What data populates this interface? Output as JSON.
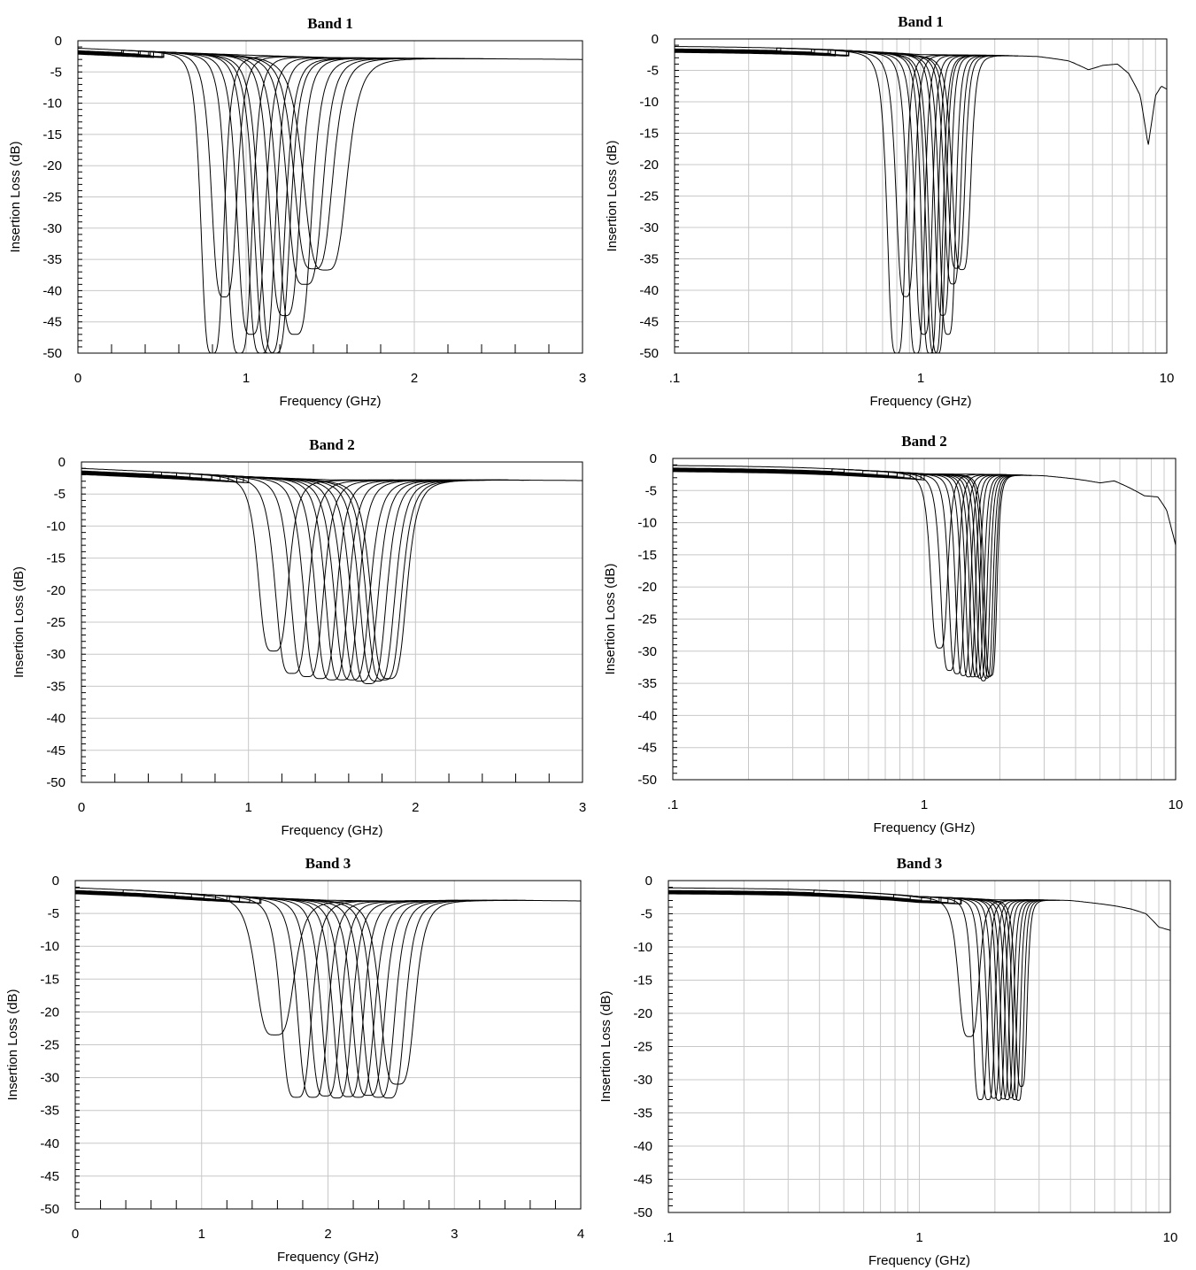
{
  "chart_data": [
    {
      "type": "line",
      "title": "Band 1",
      "xlabel": "Frequency (GHz)",
      "ylabel": "Insertion Loss (dB)",
      "xscale": "linear",
      "xlim": [
        0,
        3
      ],
      "ylim": [
        -50,
        0
      ],
      "xticks": [
        {
          "v": 0,
          "label": "0"
        },
        {
          "v": 1,
          "label": "1"
        },
        {
          "v": 2,
          "label": "2"
        },
        {
          "v": 3,
          "label": "3"
        }
      ],
      "yticks": [
        "0",
        "-5",
        "-10",
        "-15",
        "-20",
        "-25",
        "-30",
        "-35",
        "-40",
        "-45",
        "-50"
      ],
      "grid": true,
      "legend": "none",
      "series": [
        {
          "center": 0.8,
          "depth": -50,
          "width": 0.09,
          "shoulder": -3.0
        },
        {
          "center": 0.87,
          "depth": -41,
          "width": 0.1,
          "shoulder": -3.0
        },
        {
          "center": 0.96,
          "depth": -50,
          "width": 0.1,
          "shoulder": -3.0
        },
        {
          "center": 1.03,
          "depth": -47,
          "width": 0.11,
          "shoulder": -3.0
        },
        {
          "center": 1.09,
          "depth": -50,
          "width": 0.11,
          "shoulder": -3.0
        },
        {
          "center": 1.14,
          "depth": -50,
          "width": 0.12,
          "shoulder": -3.0
        },
        {
          "center": 1.17,
          "depth": -50,
          "width": 0.12,
          "shoulder": -3.0
        },
        {
          "center": 1.23,
          "depth": -44,
          "width": 0.12,
          "shoulder": -3.0
        },
        {
          "center": 1.29,
          "depth": -47,
          "width": 0.13,
          "shoulder": -3.0
        },
        {
          "center": 1.35,
          "depth": -39,
          "width": 0.14,
          "shoulder": -3.0
        },
        {
          "center": 1.4,
          "depth": -36.5,
          "width": 0.15,
          "shoulder": -3.0
        },
        {
          "center": 1.47,
          "depth": -36.7,
          "width": 0.17,
          "shoulder": -3.0
        }
      ],
      "baseline": {
        "x": [
          0,
          0.5,
          1.0,
          1.5,
          2.0,
          2.5,
          3.0
        ],
        "y": [
          -1.2,
          -1.8,
          -2.3,
          -2.7,
          -2.8,
          -2.9,
          -3.0
        ]
      }
    },
    {
      "type": "line",
      "title": "Band 1",
      "xlabel": "Frequency (GHz)",
      "ylabel": "Insertion Loss (dB)",
      "xscale": "log",
      "xlim": [
        0.1,
        10
      ],
      "ylim": [
        -50,
        0
      ],
      "xticks": [
        {
          "v": 0.1,
          "label": ".1"
        },
        {
          "v": 1,
          "label": "1"
        },
        {
          "v": 10,
          "label": "10"
        }
      ],
      "yticks": [
        "0",
        "-5",
        "-10",
        "-15",
        "-20",
        "-25",
        "-30",
        "-35",
        "-40",
        "-45",
        "-50"
      ],
      "grid": true,
      "legend": "none",
      "series": [
        {
          "center": 0.8,
          "depth": -50,
          "width": 0.09,
          "shoulder": -3.0
        },
        {
          "center": 0.87,
          "depth": -41,
          "width": 0.1,
          "shoulder": -3.0
        },
        {
          "center": 0.96,
          "depth": -50,
          "width": 0.1,
          "shoulder": -3.0
        },
        {
          "center": 1.03,
          "depth": -47,
          "width": 0.11,
          "shoulder": -3.0
        },
        {
          "center": 1.09,
          "depth": -50,
          "width": 0.11,
          "shoulder": -3.0
        },
        {
          "center": 1.14,
          "depth": -50,
          "width": 0.12,
          "shoulder": -3.0
        },
        {
          "center": 1.17,
          "depth": -50,
          "width": 0.12,
          "shoulder": -3.0
        },
        {
          "center": 1.23,
          "depth": -44,
          "width": 0.12,
          "shoulder": -3.0
        },
        {
          "center": 1.29,
          "depth": -47,
          "width": 0.13,
          "shoulder": -3.0
        },
        {
          "center": 1.35,
          "depth": -39,
          "width": 0.14,
          "shoulder": -3.0
        },
        {
          "center": 1.4,
          "depth": -36.5,
          "width": 0.15,
          "shoulder": -3.0
        },
        {
          "center": 1.47,
          "depth": -36.7,
          "width": 0.17,
          "shoulder": -3.0
        }
      ],
      "baseline": {
        "x": [
          0.1,
          0.3,
          0.6,
          1.0,
          2.0,
          3.0,
          4.0,
          4.8,
          5.5,
          6.3,
          7.0,
          7.8,
          8.4,
          9.0,
          9.5,
          10.0
        ],
        "y": [
          -1.2,
          -1.5,
          -2.0,
          -2.5,
          -2.6,
          -2.8,
          -3.5,
          -4.9,
          -4.2,
          -4.0,
          -5.5,
          -9.0,
          -17.0,
          -9.0,
          -7.5,
          -8.0
        ]
      }
    },
    {
      "type": "line",
      "title": "Band 2",
      "xlabel": "Frequency (GHz)",
      "ylabel": "Insertion Loss (dB)",
      "xscale": "linear",
      "xlim": [
        0,
        3
      ],
      "ylim": [
        -50,
        0
      ],
      "xticks": [
        {
          "v": 0,
          "label": "0"
        },
        {
          "v": 1,
          "label": "1"
        },
        {
          "v": 2,
          "label": "2"
        },
        {
          "v": 3,
          "label": "3"
        }
      ],
      "yticks": [
        "0",
        "-5",
        "-10",
        "-15",
        "-20",
        "-25",
        "-30",
        "-35",
        "-40",
        "-45",
        "-50"
      ],
      "grid": true,
      "legend": "none",
      "series": [
        {
          "center": 1.15,
          "depth": -29.5,
          "width": 0.12,
          "shoulder": -3.0
        },
        {
          "center": 1.26,
          "depth": -33.0,
          "width": 0.13,
          "shoulder": -3.0
        },
        {
          "center": 1.35,
          "depth": -33.5,
          "width": 0.13,
          "shoulder": -3.0
        },
        {
          "center": 1.43,
          "depth": -33.8,
          "width": 0.13,
          "shoulder": -3.0
        },
        {
          "center": 1.5,
          "depth": -34.0,
          "width": 0.13,
          "shoulder": -3.0
        },
        {
          "center": 1.56,
          "depth": -34.0,
          "width": 0.13,
          "shoulder": -3.0
        },
        {
          "center": 1.62,
          "depth": -34.0,
          "width": 0.14,
          "shoulder": -3.0
        },
        {
          "center": 1.67,
          "depth": -34.2,
          "width": 0.14,
          "shoulder": -3.0
        },
        {
          "center": 1.72,
          "depth": -34.6,
          "width": 0.14,
          "shoulder": -3.0
        },
        {
          "center": 1.77,
          "depth": -34.2,
          "width": 0.14,
          "shoulder": -3.0
        },
        {
          "center": 1.81,
          "depth": -34.0,
          "width": 0.14,
          "shoulder": -3.0
        },
        {
          "center": 1.84,
          "depth": -33.8,
          "width": 0.14,
          "shoulder": -3.0
        }
      ],
      "baseline": {
        "x": [
          0,
          0.5,
          1.0,
          1.5,
          2.0,
          2.5,
          3.0
        ],
        "y": [
          -1.0,
          -1.6,
          -2.3,
          -2.8,
          -2.8,
          -2.8,
          -2.9
        ]
      }
    },
    {
      "type": "line",
      "title": "Band 2",
      "xlabel": "Frequency (GHz)",
      "ylabel": "Insertion Loss (dB)",
      "xscale": "log",
      "xlim": [
        0.1,
        10
      ],
      "ylim": [
        -50,
        0
      ],
      "xticks": [
        {
          "v": 0.1,
          "label": ".1"
        },
        {
          "v": 1,
          "label": "1"
        },
        {
          "v": 10,
          "label": "10"
        }
      ],
      "yticks": [
        "0",
        "-5",
        "-10",
        "-15",
        "-20",
        "-25",
        "-30",
        "-35",
        "-40",
        "-45",
        "-50"
      ],
      "grid": true,
      "legend": "none",
      "series": [
        {
          "center": 1.15,
          "depth": -29.5,
          "width": 0.12,
          "shoulder": -3.0
        },
        {
          "center": 1.26,
          "depth": -33.0,
          "width": 0.13,
          "shoulder": -3.0
        },
        {
          "center": 1.35,
          "depth": -33.5,
          "width": 0.13,
          "shoulder": -3.0
        },
        {
          "center": 1.43,
          "depth": -33.8,
          "width": 0.13,
          "shoulder": -3.0
        },
        {
          "center": 1.5,
          "depth": -34.0,
          "width": 0.13,
          "shoulder": -3.0
        },
        {
          "center": 1.56,
          "depth": -34.0,
          "width": 0.13,
          "shoulder": -3.0
        },
        {
          "center": 1.62,
          "depth": -34.0,
          "width": 0.14,
          "shoulder": -3.0
        },
        {
          "center": 1.67,
          "depth": -34.2,
          "width": 0.14,
          "shoulder": -3.0
        },
        {
          "center": 1.72,
          "depth": -34.6,
          "width": 0.14,
          "shoulder": -3.0
        },
        {
          "center": 1.77,
          "depth": -34.2,
          "width": 0.14,
          "shoulder": -3.0
        },
        {
          "center": 1.81,
          "depth": -34.0,
          "width": 0.14,
          "shoulder": -3.0
        },
        {
          "center": 1.84,
          "depth": -33.8,
          "width": 0.14,
          "shoulder": -3.0
        }
      ],
      "baseline": {
        "x": [
          0.1,
          0.3,
          0.6,
          1.0,
          2.0,
          3.0,
          4.0,
          5.0,
          5.7,
          6.5,
          7.5,
          8.5,
          9.2,
          10.0
        ],
        "y": [
          -1.1,
          -1.4,
          -1.9,
          -2.4,
          -2.5,
          -2.7,
          -3.2,
          -3.8,
          -3.5,
          -4.5,
          -5.8,
          -6.0,
          -8.0,
          -13.5
        ]
      }
    },
    {
      "type": "line",
      "title": "Band 3",
      "xlabel": "Frequency (GHz)",
      "ylabel": "Insertion Loss (dB)",
      "xscale": "linear",
      "xlim": [
        0,
        4
      ],
      "ylim": [
        -50,
        0
      ],
      "xticks": [
        {
          "v": 0,
          "label": "0"
        },
        {
          "v": 1,
          "label": "1"
        },
        {
          "v": 2,
          "label": "2"
        },
        {
          "v": 3,
          "label": "3"
        },
        {
          "v": 4,
          "label": "4"
        }
      ],
      "yticks": [
        "0",
        "-5",
        "-10",
        "-15",
        "-20",
        "-25",
        "-30",
        "-35",
        "-40",
        "-45",
        "-50"
      ],
      "grid": true,
      "legend": "none",
      "series": [
        {
          "center": 1.58,
          "depth": -23.5,
          "width": 0.2,
          "shoulder": -3.0
        },
        {
          "center": 1.75,
          "depth": -33.0,
          "width": 0.16,
          "shoulder": -3.0
        },
        {
          "center": 1.88,
          "depth": -33.0,
          "width": 0.16,
          "shoulder": -3.0
        },
        {
          "center": 1.98,
          "depth": -32.8,
          "width": 0.16,
          "shoulder": -3.0
        },
        {
          "center": 2.07,
          "depth": -33.1,
          "width": 0.16,
          "shoulder": -3.0
        },
        {
          "center": 2.16,
          "depth": -32.9,
          "width": 0.16,
          "shoulder": -3.0
        },
        {
          "center": 2.24,
          "depth": -33.0,
          "width": 0.17,
          "shoulder": -3.0
        },
        {
          "center": 2.32,
          "depth": -32.7,
          "width": 0.17,
          "shoulder": -3.0
        },
        {
          "center": 2.4,
          "depth": -33.0,
          "width": 0.17,
          "shoulder": -3.0
        },
        {
          "center": 2.48,
          "depth": -33.1,
          "width": 0.17,
          "shoulder": -3.0
        },
        {
          "center": 2.55,
          "depth": -31.0,
          "width": 0.18,
          "shoulder": -3.0
        }
      ],
      "baseline": {
        "x": [
          0,
          0.5,
          1.0,
          1.5,
          2.0,
          2.5,
          3.0,
          3.5,
          4.0
        ],
        "y": [
          -1.1,
          -1.5,
          -2.1,
          -2.6,
          -3.0,
          -3.1,
          -3.0,
          -3.0,
          -3.1
        ]
      }
    },
    {
      "type": "line",
      "title": "Band 3",
      "xlabel": "Frequency (GHz)",
      "ylabel": "Insertion Loss (dB)",
      "xscale": "log",
      "xlim": [
        0.1,
        10
      ],
      "ylim": [
        -50,
        0
      ],
      "xticks": [
        {
          "v": 0.1,
          "label": ".1"
        },
        {
          "v": 1,
          "label": "1"
        },
        {
          "v": 10,
          "label": "10"
        }
      ],
      "yticks": [
        "0",
        "-5",
        "-10",
        "-15",
        "-20",
        "-25",
        "-30",
        "-35",
        "-40",
        "-45",
        "-50"
      ],
      "grid": true,
      "legend": "none",
      "series": [
        {
          "center": 1.58,
          "depth": -23.5,
          "width": 0.2,
          "shoulder": -3.0
        },
        {
          "center": 1.75,
          "depth": -33.0,
          "width": 0.16,
          "shoulder": -3.0
        },
        {
          "center": 1.88,
          "depth": -33.0,
          "width": 0.16,
          "shoulder": -3.0
        },
        {
          "center": 1.98,
          "depth": -32.8,
          "width": 0.16,
          "shoulder": -3.0
        },
        {
          "center": 2.07,
          "depth": -33.1,
          "width": 0.16,
          "shoulder": -3.0
        },
        {
          "center": 2.16,
          "depth": -32.9,
          "width": 0.16,
          "shoulder": -3.0
        },
        {
          "center": 2.24,
          "depth": -33.0,
          "width": 0.17,
          "shoulder": -3.0
        },
        {
          "center": 2.32,
          "depth": -32.7,
          "width": 0.17,
          "shoulder": -3.0
        },
        {
          "center": 2.4,
          "depth": -33.0,
          "width": 0.17,
          "shoulder": -3.0
        },
        {
          "center": 2.48,
          "depth": -33.1,
          "width": 0.17,
          "shoulder": -3.0
        },
        {
          "center": 2.55,
          "depth": -31.0,
          "width": 0.18,
          "shoulder": -3.0
        }
      ],
      "baseline": {
        "x": [
          0.1,
          0.3,
          0.6,
          1.0,
          2.0,
          3.0,
          4.0,
          5.0,
          6.0,
          7.0,
          8.0,
          9.0,
          10.0
        ],
        "y": [
          -1.1,
          -1.3,
          -1.8,
          -2.4,
          -2.9,
          -2.9,
          -3.0,
          -3.4,
          -3.8,
          -4.3,
          -5.0,
          -7.0,
          -7.5
        ]
      }
    }
  ]
}
